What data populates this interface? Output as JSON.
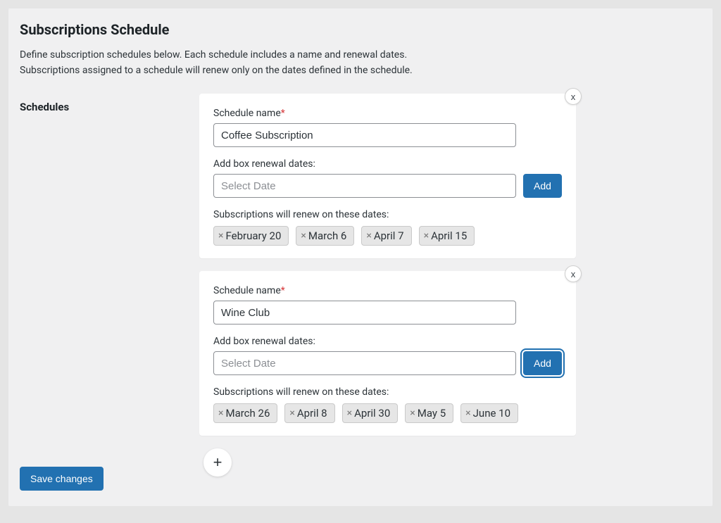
{
  "colors": {
    "page_bg": "#f0f0f1",
    "outer_bg": "#e5e5e5",
    "card_bg": "#ffffff",
    "primary": "#2271b1",
    "chip_bg": "#e6e6e6",
    "chip_border": "#c9c9c9",
    "text": "#2c3338",
    "required": "#d63638"
  },
  "title": "Subscriptions Schedule",
  "description_line1": "Define subscription schedules below. Each schedule includes a name and renewal dates.",
  "description_line2": "Subscriptions assigned to a schedule will renew only on the dates defined in the schedule.",
  "schedules_label": "Schedules",
  "labels": {
    "schedule_name": "Schedule name",
    "required_mark": "*",
    "add_dates": "Add box renewal dates:",
    "date_placeholder": "Select Date",
    "add_button": "Add",
    "renew_on": "Subscriptions will renew on these dates:",
    "close": "x",
    "chip_remove": "×",
    "add_schedule": "+",
    "save": "Save changes"
  },
  "schedules": [
    {
      "name": "Coffee Subscription",
      "date_value": "",
      "add_focused": false,
      "dates": [
        "February 20",
        "March 6",
        "April 7",
        "April 15"
      ]
    },
    {
      "name": "Wine Club",
      "date_value": "",
      "add_focused": true,
      "dates": [
        "March 26",
        "April 8",
        "April 30",
        "May 5",
        "June 10"
      ]
    }
  ]
}
